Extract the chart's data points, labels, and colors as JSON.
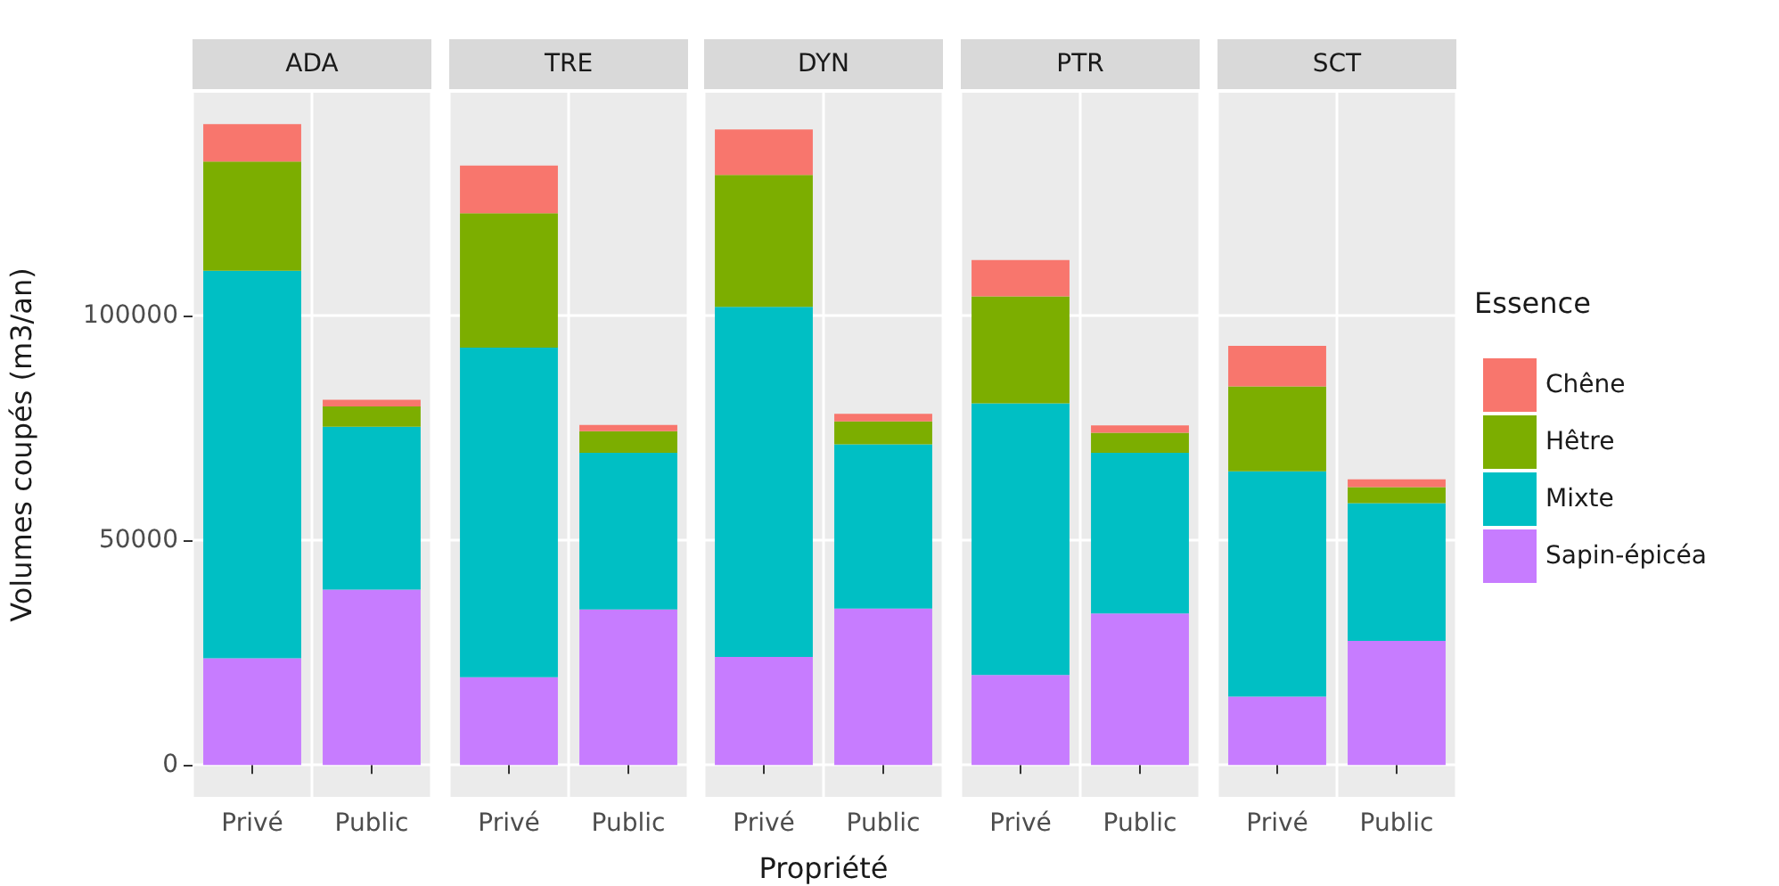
{
  "chart_data": [
    {
      "type": "bar",
      "title": "ADA",
      "ylabel": "Volumes coupés (m3/an)",
      "categories": [
        "Privé",
        "Public"
      ],
      "stacked": true,
      "ylim": [
        -7100,
        149500
      ],
      "yticks": [
        0,
        50000,
        100000
      ],
      "grid": true,
      "legend": false,
      "series": [
        {
          "color": "#c77cff",
          "values": [
            23700,
            39000
          ]
        },
        {
          "color": "#00bfc4",
          "values": [
            86200,
            36200
          ]
        },
        {
          "color": "#7cae00",
          "values": [
            24300,
            4500
          ]
        },
        {
          "color": "#f8766d",
          "values": [
            8300,
            1500
          ]
        }
      ]
    },
    {
      "type": "bar",
      "title": "TRE",
      "categories": [
        "Privé",
        "Public"
      ],
      "stacked": true,
      "ylim": [
        -7100,
        149500
      ],
      "yticks": [
        0,
        50000,
        100000
      ],
      "grid": true,
      "legend": false,
      "tick_labels": "x",
      "series": [
        {
          "color": "#c77cff",
          "values": [
            19500,
            34600
          ]
        },
        {
          "color": "#00bfc4",
          "values": [
            73300,
            34800
          ]
        },
        {
          "color": "#7cae00",
          "values": [
            29900,
            4800
          ]
        },
        {
          "color": "#f8766d",
          "values": [
            10600,
            1400
          ]
        }
      ]
    },
    {
      "type": "bar",
      "title": "DYN",
      "xlabel": "Propriété",
      "categories": [
        "Privé",
        "Public"
      ],
      "stacked": true,
      "ylim": [
        -7100,
        149500
      ],
      "yticks": [
        0,
        50000,
        100000
      ],
      "grid": true,
      "legend": false,
      "tick_labels": "x",
      "series": [
        {
          "color": "#c77cff",
          "values": [
            24000,
            34800
          ]
        },
        {
          "color": "#00bfc4",
          "values": [
            77900,
            36500
          ]
        },
        {
          "color": "#7cae00",
          "values": [
            29300,
            5100
          ]
        },
        {
          "color": "#f8766d",
          "values": [
            10100,
            1700
          ]
        }
      ]
    },
    {
      "type": "bar",
      "title": "PTR",
      "categories": [
        "Privé",
        "Public"
      ],
      "stacked": true,
      "ylim": [
        -7100,
        149500
      ],
      "yticks": [
        0,
        50000,
        100000
      ],
      "grid": true,
      "legend": false,
      "tick_labels": "x",
      "series": [
        {
          "color": "#c77cff",
          "values": [
            20000,
            33700
          ]
        },
        {
          "color": "#00bfc4",
          "values": [
            60400,
            35700
          ]
        },
        {
          "color": "#7cae00",
          "values": [
            23800,
            4500
          ]
        },
        {
          "color": "#f8766d",
          "values": [
            8100,
            1600
          ]
        }
      ]
    },
    {
      "type": "bar",
      "title": "SCT",
      "legend_title": "Essence",
      "categories": [
        "Privé",
        "Public"
      ],
      "stacked": true,
      "ylim": [
        -7100,
        149500
      ],
      "yticks": [
        0,
        50000,
        100000
      ],
      "grid": true,
      "legend": "right",
      "tick_labels": "x",
      "series": [
        {
          "name": "Sapin-épicéa",
          "color": "#c77cff",
          "values": [
            15200,
            27600
          ]
        },
        {
          "name": "Mixte",
          "color": "#00bfc4",
          "values": [
            50100,
            30600
          ]
        },
        {
          "name": "Hêtre",
          "color": "#7cae00",
          "values": [
            18900,
            3600
          ]
        },
        {
          "name": "Chêne",
          "color": "#f8766d",
          "values": [
            9000,
            1700
          ]
        }
      ]
    }
  ]
}
